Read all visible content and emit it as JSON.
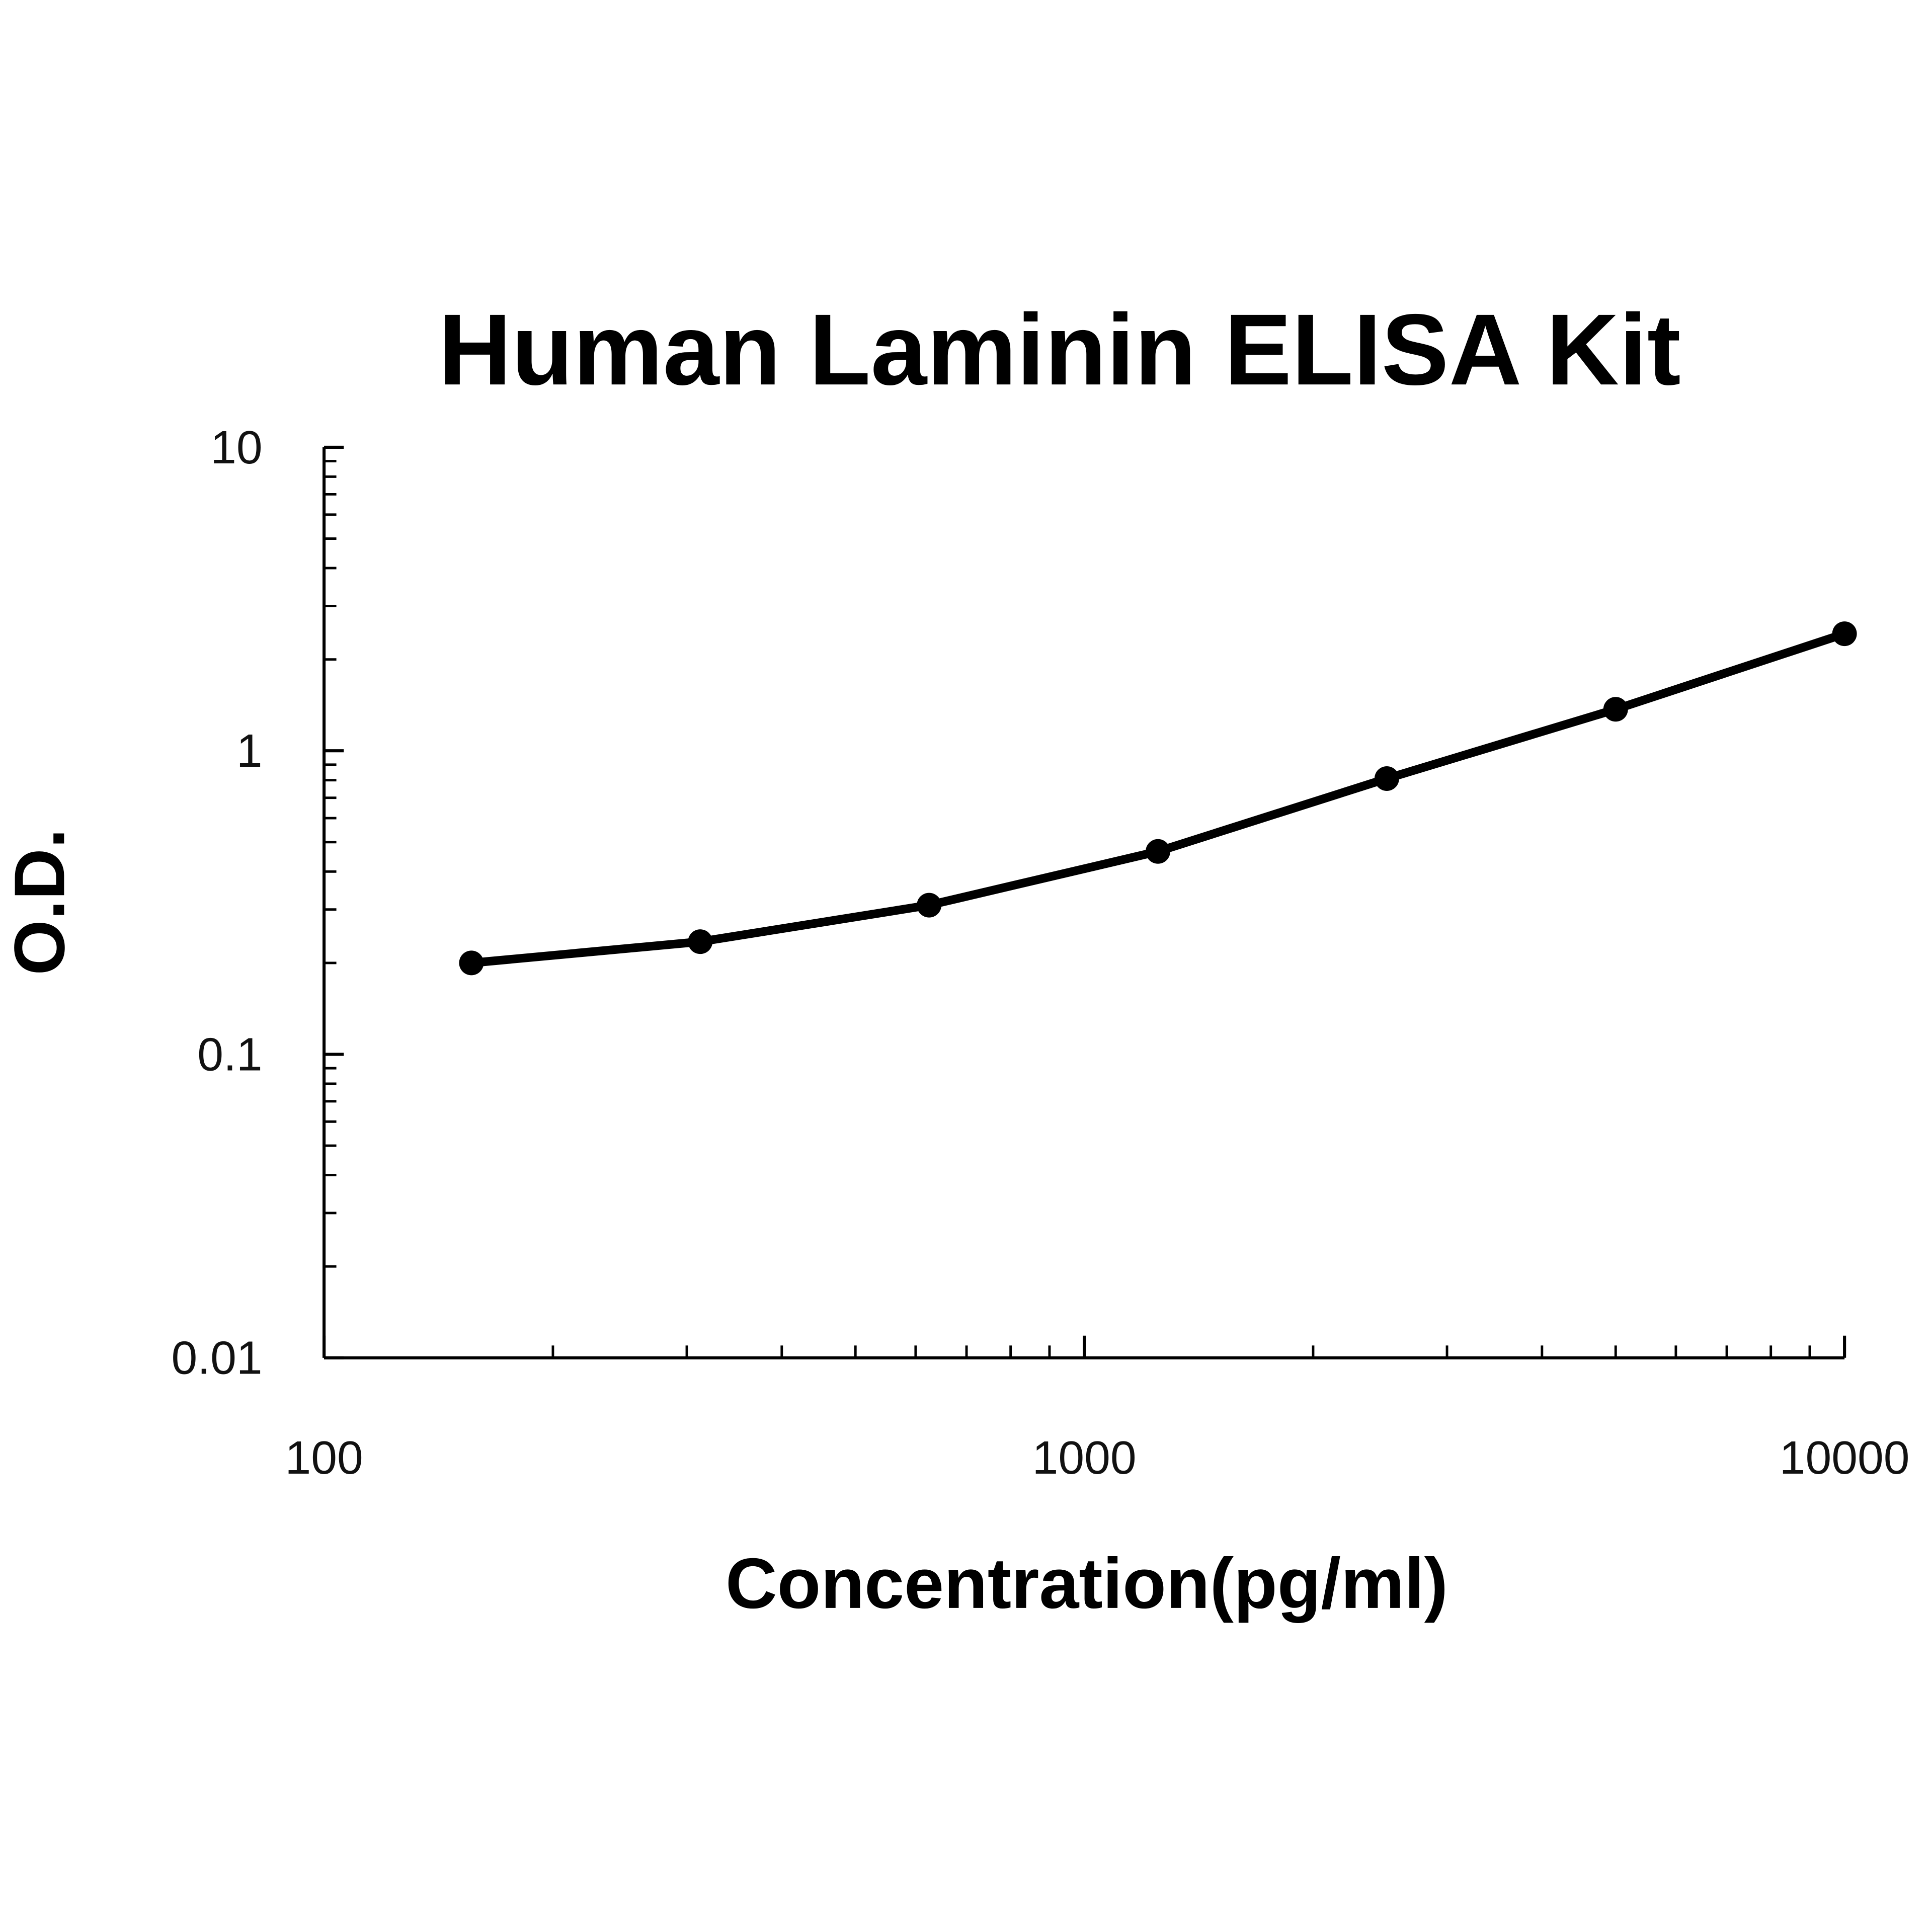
{
  "chart_data": {
    "type": "line",
    "title": "Human Laminin ELISA Kit",
    "x_label": "Concentration(pg/ml)",
    "y_label": "O.D.",
    "x": [
      156.25,
      312.5,
      625,
      1250,
      2500,
      5000,
      10000
    ],
    "values": [
      0.2,
      0.235,
      0.31,
      0.466,
      0.81,
      1.37,
      2.43
    ],
    "color": "#000000",
    "log_x": true,
    "log_y": true,
    "xlim": [
      100,
      10000
    ],
    "xticks": [
      100,
      1000,
      10000
    ],
    "ylim": [
      0.01,
      10
    ],
    "yticks": [
      0.01,
      0.1,
      1,
      10
    ]
  }
}
